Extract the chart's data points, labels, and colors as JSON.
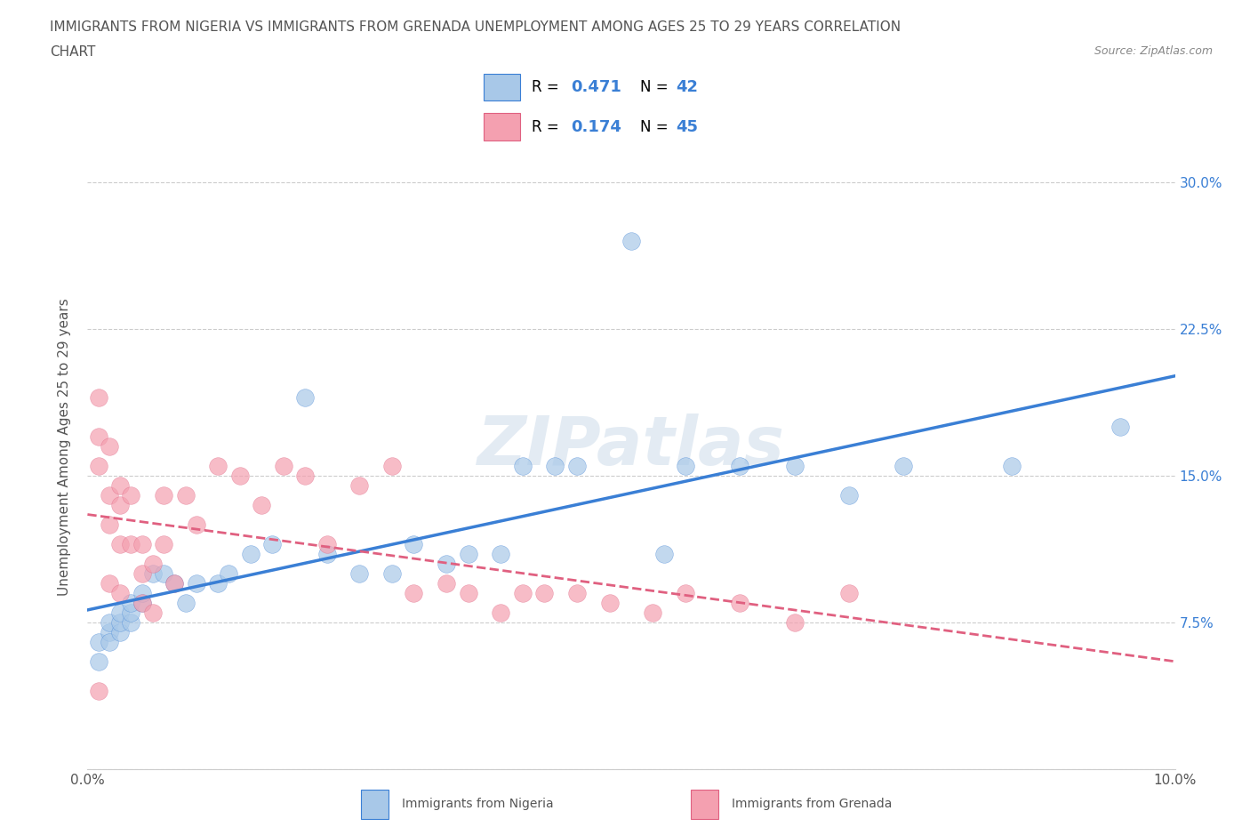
{
  "title_line1": "IMMIGRANTS FROM NIGERIA VS IMMIGRANTS FROM GRENADA UNEMPLOYMENT AMONG AGES 25 TO 29 YEARS CORRELATION",
  "title_line2": "CHART",
  "source": "Source: ZipAtlas.com",
  "ylabel": "Unemployment Among Ages 25 to 29 years",
  "xlim": [
    0.0,
    0.1
  ],
  "ylim": [
    0.0,
    0.33
  ],
  "xticks": [
    0.0,
    0.02,
    0.04,
    0.06,
    0.08,
    0.1
  ],
  "xticklabels": [
    "0.0%",
    "",
    "",
    "",
    "",
    "10.0%"
  ],
  "yticks": [
    0.0,
    0.075,
    0.15,
    0.225,
    0.3
  ],
  "yticklabels": [
    "",
    "7.5%",
    "15.0%",
    "22.5%",
    "30.0%"
  ],
  "R_nigeria": 0.471,
  "N_nigeria": 42,
  "R_grenada": 0.174,
  "N_grenada": 45,
  "color_nigeria": "#a8c8e8",
  "color_grenada": "#f4a0b0",
  "color_trendline_nigeria": "#3a7fd5",
  "color_trendline_grenada": "#e06080",
  "watermark": "ZIPatlas",
  "legend_label_nigeria": "Immigrants from Nigeria",
  "legend_label_grenada": "Immigrants from Grenada",
  "nigeria_x": [
    0.001,
    0.001,
    0.002,
    0.002,
    0.002,
    0.003,
    0.003,
    0.003,
    0.004,
    0.004,
    0.004,
    0.005,
    0.005,
    0.006,
    0.007,
    0.008,
    0.009,
    0.01,
    0.012,
    0.013,
    0.015,
    0.017,
    0.02,
    0.022,
    0.025,
    0.028,
    0.03,
    0.033,
    0.035,
    0.038,
    0.04,
    0.043,
    0.045,
    0.05,
    0.053,
    0.055,
    0.06,
    0.065,
    0.07,
    0.075,
    0.085,
    0.095
  ],
  "nigeria_y": [
    0.055,
    0.065,
    0.07,
    0.065,
    0.075,
    0.07,
    0.075,
    0.08,
    0.075,
    0.08,
    0.085,
    0.085,
    0.09,
    0.1,
    0.1,
    0.095,
    0.085,
    0.095,
    0.095,
    0.1,
    0.11,
    0.115,
    0.19,
    0.11,
    0.1,
    0.1,
    0.115,
    0.105,
    0.11,
    0.11,
    0.155,
    0.155,
    0.155,
    0.27,
    0.11,
    0.155,
    0.155,
    0.155,
    0.14,
    0.155,
    0.155,
    0.175
  ],
  "grenada_x": [
    0.001,
    0.001,
    0.001,
    0.001,
    0.002,
    0.002,
    0.002,
    0.002,
    0.003,
    0.003,
    0.003,
    0.003,
    0.004,
    0.004,
    0.005,
    0.005,
    0.005,
    0.006,
    0.006,
    0.007,
    0.007,
    0.008,
    0.009,
    0.01,
    0.012,
    0.014,
    0.016,
    0.018,
    0.02,
    0.022,
    0.025,
    0.028,
    0.03,
    0.033,
    0.035,
    0.038,
    0.04,
    0.042,
    0.045,
    0.048,
    0.052,
    0.055,
    0.06,
    0.065,
    0.07
  ],
  "grenada_y": [
    0.19,
    0.17,
    0.155,
    0.04,
    0.165,
    0.14,
    0.125,
    0.095,
    0.145,
    0.135,
    0.115,
    0.09,
    0.14,
    0.115,
    0.115,
    0.1,
    0.085,
    0.105,
    0.08,
    0.14,
    0.115,
    0.095,
    0.14,
    0.125,
    0.155,
    0.15,
    0.135,
    0.155,
    0.15,
    0.115,
    0.145,
    0.155,
    0.09,
    0.095,
    0.09,
    0.08,
    0.09,
    0.09,
    0.09,
    0.085,
    0.08,
    0.09,
    0.085,
    0.075,
    0.09
  ]
}
